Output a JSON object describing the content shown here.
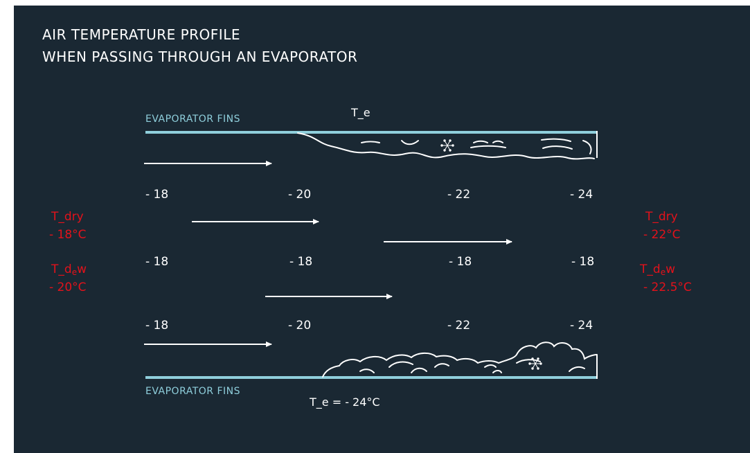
{
  "title": {
    "line1": "AIR TEMPERATURE PROFILE",
    "line2": "WHEN PASSING THROUGH AN EVAPORATOR"
  },
  "top_fins": {
    "label": "EVAPORATOR FINS",
    "te_label": "T_e"
  },
  "bottom_fins": {
    "label": "EVAPORATOR FINS",
    "te_label": "T_e = - 24°C"
  },
  "rows": {
    "upper": [
      "- 18",
      "- 20",
      "- 22",
      "- 24"
    ],
    "middle": [
      "- 18",
      "- 18",
      "- 18",
      "- 18"
    ],
    "lower": [
      "- 18",
      "- 20",
      "- 22",
      "- 24"
    ]
  },
  "inlet": {
    "dry_label": "T_dry",
    "dry_value": "- 18°C",
    "dew_prefix": "T_d",
    "dew_sub": "e",
    "dew_suffix": "w",
    "dew_value": "- 20°C"
  },
  "outlet": {
    "dry_label": "T_dry",
    "dry_value": "- 22°C",
    "dew_prefix": "T_d",
    "dew_sub": "e",
    "dew_suffix": "w",
    "dew_value": "- 22.5°C"
  },
  "icons": {
    "frost": "snowflake-icon",
    "flow": "arrow-right-icon"
  },
  "colors": {
    "background": "#1a2833",
    "fins": "#8fcfdc",
    "text": "#ffffff",
    "accent_red": "#e3121b"
  }
}
